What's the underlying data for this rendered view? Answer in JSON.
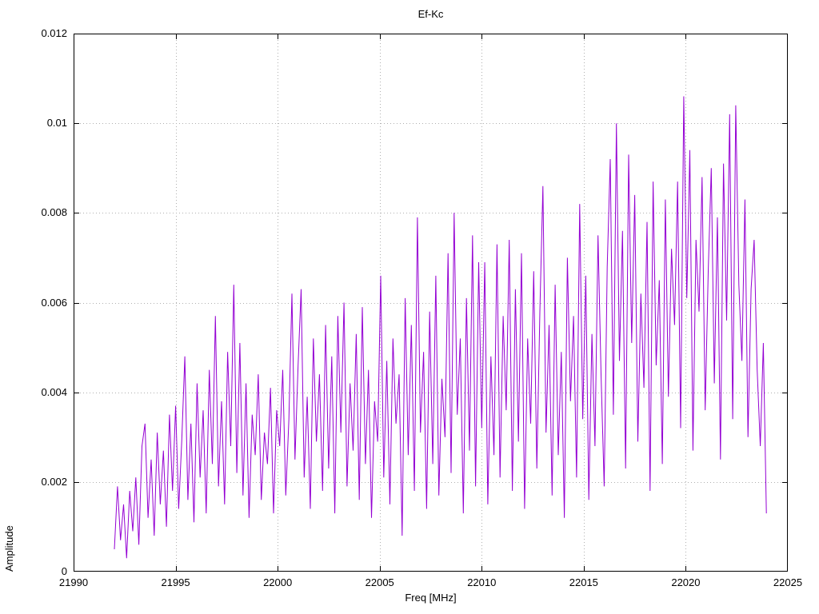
{
  "chart_data": {
    "type": "line",
    "title": "Ef-Kc",
    "xlabel": "Freq [MHz]",
    "ylabel": "Amplitude",
    "xlim": [
      21990,
      22025
    ],
    "ylim": [
      0,
      0.012
    ],
    "xticks": [
      21990,
      21995,
      22000,
      22005,
      22010,
      22015,
      22020,
      22025
    ],
    "xtick_labels": [
      "21990",
      "21995",
      "22000",
      "22005",
      "22010",
      "22015",
      "22020",
      "22025"
    ],
    "yticks": [
      0,
      0.002,
      0.004,
      0.006,
      0.008,
      0.01,
      0.012
    ],
    "ytick_labels": [
      "0",
      "0.002",
      "0.004",
      "0.006",
      "0.008",
      "0.01",
      "0.012"
    ],
    "grid": "dotted",
    "legend": "none",
    "line_color": "#9400d3",
    "grid_color": "#b0b0b0",
    "border_color": "#000000",
    "series": {
      "name": "Ef-Kc",
      "x_start": 21992.0,
      "x_step": 0.15,
      "values": [
        0.0005,
        0.0019,
        0.0007,
        0.0015,
        0.0003,
        0.0018,
        0.0009,
        0.0021,
        0.0006,
        0.0028,
        0.0033,
        0.0012,
        0.0025,
        0.0008,
        0.0031,
        0.0015,
        0.0027,
        0.001,
        0.0035,
        0.0018,
        0.0037,
        0.0014,
        0.0029,
        0.0048,
        0.0016,
        0.0033,
        0.0011,
        0.0042,
        0.0021,
        0.0036,
        0.0013,
        0.0045,
        0.0024,
        0.0057,
        0.0019,
        0.0038,
        0.0015,
        0.0049,
        0.0028,
        0.0064,
        0.0022,
        0.0051,
        0.0017,
        0.0042,
        0.0012,
        0.0035,
        0.0026,
        0.0044,
        0.0016,
        0.0031,
        0.0024,
        0.0041,
        0.0013,
        0.0036,
        0.0028,
        0.0045,
        0.0017,
        0.0034,
        0.0062,
        0.0025,
        0.0046,
        0.0063,
        0.0021,
        0.0039,
        0.0014,
        0.0052,
        0.0029,
        0.0044,
        0.0018,
        0.0055,
        0.0023,
        0.0048,
        0.0013,
        0.0057,
        0.0031,
        0.006,
        0.0019,
        0.0042,
        0.0027,
        0.0053,
        0.0016,
        0.0059,
        0.0024,
        0.0045,
        0.0012,
        0.0038,
        0.0029,
        0.0066,
        0.0021,
        0.0047,
        0.0015,
        0.0052,
        0.0033,
        0.0044,
        0.0008,
        0.0061,
        0.0026,
        0.0055,
        0.0018,
        0.0079,
        0.0031,
        0.0049,
        0.0014,
        0.0058,
        0.0024,
        0.0066,
        0.0017,
        0.0043,
        0.003,
        0.0071,
        0.0022,
        0.008,
        0.0035,
        0.0052,
        0.0013,
        0.0061,
        0.0027,
        0.0075,
        0.0019,
        0.0069,
        0.0032,
        0.0069,
        0.0015,
        0.0048,
        0.0026,
        0.0073,
        0.0021,
        0.0057,
        0.0036,
        0.0074,
        0.0018,
        0.0063,
        0.0029,
        0.0071,
        0.0014,
        0.0052,
        0.0033,
        0.0067,
        0.0023,
        0.0058,
        0.0086,
        0.0031,
        0.0055,
        0.0017,
        0.0064,
        0.0026,
        0.0049,
        0.0012,
        0.007,
        0.0038,
        0.0057,
        0.0021,
        0.0082,
        0.0034,
        0.0066,
        0.0016,
        0.0053,
        0.0028,
        0.0075,
        0.0044,
        0.0019,
        0.0068,
        0.0092,
        0.0035,
        0.01,
        0.0047,
        0.0076,
        0.0023,
        0.0093,
        0.0051,
        0.0084,
        0.0029,
        0.0062,
        0.0041,
        0.0078,
        0.0018,
        0.0087,
        0.0046,
        0.0065,
        0.0024,
        0.0083,
        0.0039,
        0.0072,
        0.0055,
        0.0087,
        0.0032,
        0.0106,
        0.0061,
        0.0094,
        0.0027,
        0.0074,
        0.0058,
        0.0088,
        0.0036,
        0.0067,
        0.009,
        0.0042,
        0.0079,
        0.0025,
        0.0091,
        0.0056,
        0.0102,
        0.0034,
        0.0104,
        0.0064,
        0.0047,
        0.0083,
        0.003,
        0.0063,
        0.0074,
        0.0045,
        0.0028,
        0.0051,
        0.0013
      ]
    }
  }
}
